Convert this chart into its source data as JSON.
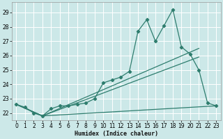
{
  "xlabel": "Humidex (Indice chaleur)",
  "bg_color": "#cce8e8",
  "grid_color": "#ffffff",
  "line_color": "#2e7d6e",
  "xlim": [
    -0.5,
    23.5
  ],
  "ylim": [
    21.5,
    29.7
  ],
  "xticks": [
    0,
    1,
    2,
    3,
    4,
    5,
    6,
    7,
    8,
    9,
    10,
    11,
    12,
    13,
    14,
    15,
    16,
    17,
    18,
    19,
    20,
    21,
    22,
    23
  ],
  "yticks": [
    22,
    23,
    24,
    25,
    26,
    27,
    28,
    29
  ],
  "series1_x": [
    0,
    1,
    2,
    3,
    4,
    5,
    6,
    7,
    8,
    9,
    10,
    11,
    12,
    13,
    14,
    15,
    16,
    17,
    18,
    19,
    20,
    21,
    22,
    23
  ],
  "series1_y": [
    22.6,
    22.4,
    22.0,
    21.8,
    22.3,
    22.5,
    22.5,
    22.6,
    22.7,
    23.0,
    24.1,
    24.3,
    24.5,
    24.9,
    27.7,
    28.5,
    27.0,
    28.1,
    29.2,
    26.6,
    26.1,
    25.0,
    22.7,
    22.5
  ],
  "series2_x": [
    0,
    3,
    21
  ],
  "series2_y": [
    22.6,
    21.8,
    26.5
  ],
  "series3_x": [
    0,
    3,
    21
  ],
  "series3_y": [
    22.6,
    21.8,
    25.9
  ],
  "series4_x": [
    0,
    3,
    23
  ],
  "series4_y": [
    22.6,
    21.8,
    22.5
  ]
}
